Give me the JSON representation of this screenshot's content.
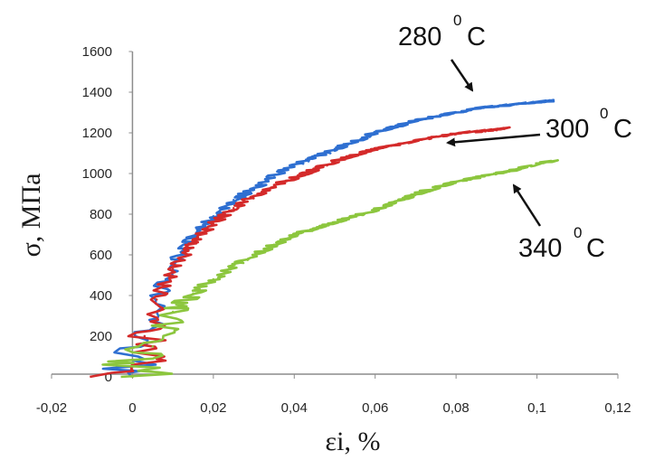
{
  "chart_data": {
    "type": "line",
    "title": "",
    "xlabel": "εi, %",
    "ylabel": "σ, МПа",
    "xlim": [
      -0.02,
      0.12
    ],
    "ylim": [
      0,
      1600
    ],
    "x_ticks": [
      "-0,02",
      "0",
      "0,02",
      "0,04",
      "0,06",
      "0,08",
      "0,1",
      "0,12"
    ],
    "y_ticks": [
      "0",
      "200",
      "400",
      "600",
      "800",
      "1000",
      "1200",
      "1400",
      "1600"
    ],
    "grid": false,
    "legend": "none",
    "series": [
      {
        "color": "#2e6fd1",
        "x": [
          0.0,
          0.003,
          0.006,
          0.01,
          0.013,
          0.016,
          0.02,
          0.025,
          0.03,
          0.035,
          0.04,
          0.045,
          0.05,
          0.055,
          0.06,
          0.065,
          0.07,
          0.075,
          0.08,
          0.085,
          0.09,
          0.095,
          0.1,
          0.103
        ],
        "y": [
          0,
          200,
          400,
          560,
          650,
          720,
          790,
          870,
          930,
          990,
          1040,
          1080,
          1120,
          1160,
          1200,
          1230,
          1260,
          1280,
          1300,
          1320,
          1330,
          1340,
          1350,
          1355
        ]
      },
      {
        "color": "#d42a2a",
        "x": [
          0.0,
          0.003,
          0.006,
          0.01,
          0.013,
          0.016,
          0.02,
          0.025,
          0.03,
          0.035,
          0.04,
          0.045,
          0.05,
          0.055,
          0.06,
          0.065,
          0.07,
          0.075,
          0.08,
          0.085,
          0.09,
          0.092
        ],
        "y": [
          0,
          200,
          380,
          530,
          620,
          690,
          760,
          830,
          890,
          940,
          980,
          1020,
          1060,
          1090,
          1120,
          1140,
          1160,
          1180,
          1195,
          1205,
          1215,
          1220
        ]
      },
      {
        "color": "#8cc63e",
        "x": [
          0.0,
          0.005,
          0.01,
          0.015,
          0.02,
          0.025,
          0.03,
          0.035,
          0.04,
          0.045,
          0.05,
          0.055,
          0.06,
          0.065,
          0.07,
          0.075,
          0.08,
          0.085,
          0.09,
          0.095,
          0.1,
          0.104
        ],
        "y": [
          0,
          150,
          320,
          410,
          480,
          550,
          600,
          650,
          700,
          730,
          760,
          790,
          820,
          860,
          900,
          930,
          960,
          980,
          1000,
          1020,
          1050,
          1060
        ]
      }
    ],
    "annotations": [
      {
        "label": "280",
        "sup": "0",
        "unit": "C"
      },
      {
        "label": "300",
        "sup": "0",
        "unit": "C"
      },
      {
        "label": "340",
        "sup": "0",
        "unit": "C"
      }
    ]
  }
}
